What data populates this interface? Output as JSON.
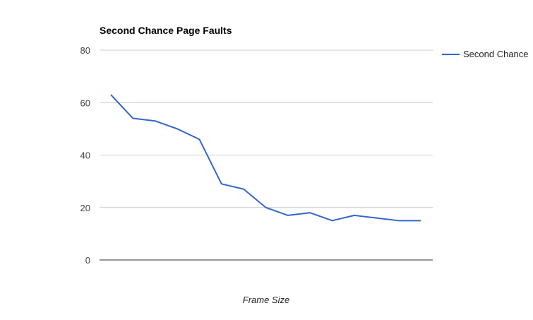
{
  "chart_data": {
    "type": "line",
    "title": "Second Chance Page Faults",
    "xlabel": "Frame Size",
    "ylabel": "",
    "ylim": [
      0,
      80
    ],
    "yticks": [
      0,
      20,
      40,
      60,
      80
    ],
    "grid": true,
    "legend_position": "right",
    "series": [
      {
        "name": "Second Chance",
        "color": "#3366cc",
        "values": [
          63,
          54,
          53,
          50,
          46,
          29,
          27,
          20,
          17,
          18,
          15,
          17,
          16,
          15,
          15
        ]
      }
    ]
  }
}
